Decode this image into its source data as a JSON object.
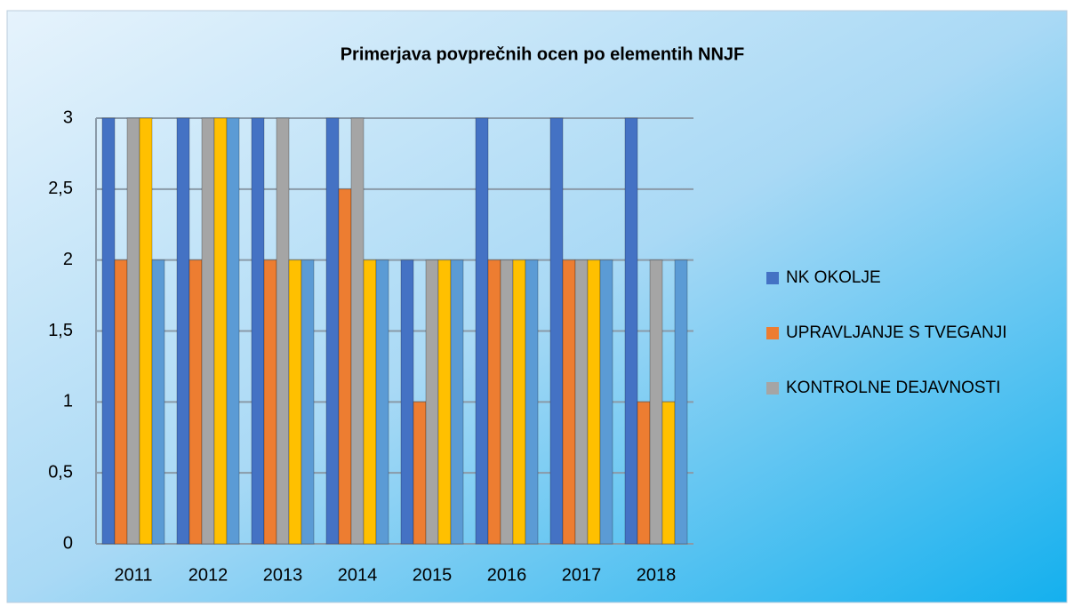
{
  "chart_data": {
    "type": "bar",
    "title": "Primerjava povprečnih ocen po elementih NNJF",
    "categories": [
      "2011",
      "2012",
      "2013",
      "2014",
      "2015",
      "2016",
      "2017",
      "2018"
    ],
    "series": [
      {
        "name": "NK OKOLJE",
        "color": "#4472c4",
        "values": [
          3,
          3,
          3,
          3,
          2,
          3,
          3,
          3
        ]
      },
      {
        "name": "UPRAVLJANJE S TVEGANJI",
        "color": "#ed7d31",
        "values": [
          2,
          2,
          2,
          2.5,
          1,
          2,
          2,
          1
        ]
      },
      {
        "name": "KONTROLNE DEJAVNOSTI",
        "color": "#a5a5a5",
        "values": [
          3,
          3,
          3,
          3,
          2,
          2,
          2,
          2
        ]
      },
      {
        "color": "#ffc000",
        "values": [
          3,
          3,
          2,
          2,
          2,
          2,
          2,
          1
        ]
      },
      {
        "color": "#5b9bd5",
        "values": [
          2,
          3,
          2,
          2,
          2,
          2,
          2,
          2
        ]
      }
    ],
    "ylim": [
      0,
      3
    ],
    "yticks": [
      0,
      {
        "value": 0.5,
        "label": "0,5"
      },
      1,
      {
        "value": 1.5,
        "label": "1,5"
      },
      2,
      {
        "value": 2.5,
        "label": "2,5"
      },
      3
    ],
    "grid": true,
    "legend": "right"
  }
}
